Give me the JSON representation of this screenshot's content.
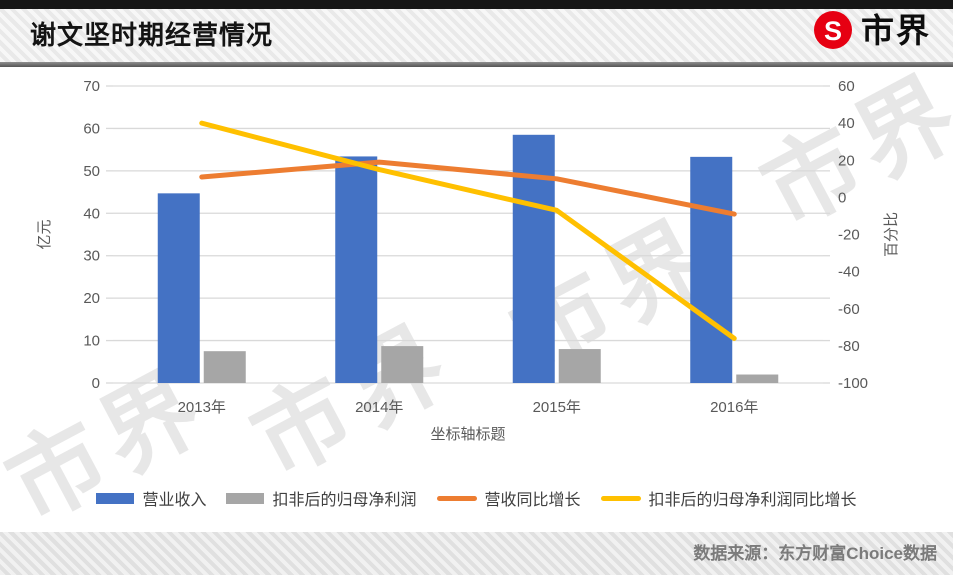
{
  "header": {
    "title": "谢文坚时期经营情况",
    "brand_name": "市界",
    "brand_glyph": "S",
    "brand_color": "#e60012"
  },
  "watermark_text": "市界",
  "footer": {
    "source_text": "数据来源：东方财富Choice数据"
  },
  "chart_data": {
    "type": "combo-bar-line",
    "categories": [
      "2013年",
      "2014年",
      "2015年",
      "2016年"
    ],
    "series": [
      {
        "key": "revenue",
        "name": "营业收入",
        "type": "bar",
        "axis": "left",
        "color": "#4472c4",
        "values": [
          44.7,
          53.4,
          58.5,
          53.3
        ]
      },
      {
        "key": "net-profit-ex-nonrecurring",
        "name": "扣非后的归母净利润",
        "type": "bar",
        "axis": "left",
        "color": "#a6a6a6",
        "values": [
          7.5,
          8.7,
          8.0,
          2.0
        ]
      },
      {
        "key": "revenue-yoy-growth",
        "name": "营收同比增长",
        "type": "line",
        "axis": "right",
        "color": "#ed7d31",
        "values": [
          11,
          19,
          10,
          -9
        ]
      },
      {
        "key": "net-profit-ex-nonrecurring-yoy-growth",
        "name": "扣非后的归母净利润同比增长",
        "type": "line",
        "axis": "right",
        "color": "#ffc000",
        "values": [
          40,
          15,
          -7,
          -76
        ]
      }
    ],
    "left_axis": {
      "title": "亿元",
      "min": 0,
      "max": 70,
      "ticks": [
        0,
        10,
        20,
        30,
        40,
        50,
        60,
        70
      ]
    },
    "right_axis": {
      "title": "百分比",
      "min": -100,
      "max": 60,
      "ticks": [
        60,
        40,
        20,
        0,
        -20,
        -40,
        -60,
        -80,
        -100
      ]
    },
    "x_axis_title": "坐标轴标题",
    "grid": true,
    "legend_position": "bottom",
    "colors": {
      "grid": "#d9d9d9",
      "tick_text": "#595959",
      "legend_text": "#404040"
    }
  }
}
